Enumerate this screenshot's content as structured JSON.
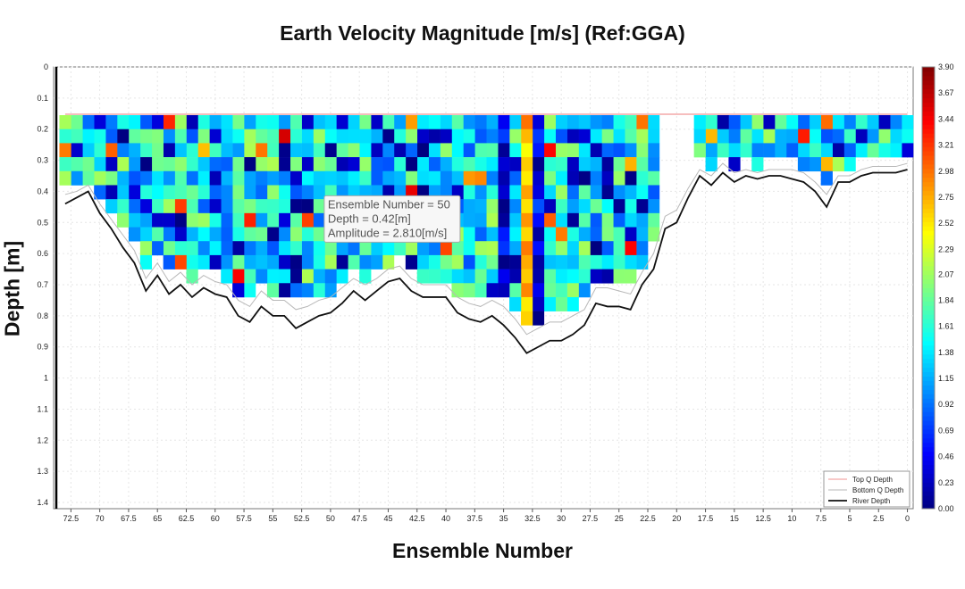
{
  "chart_data": {
    "type": "heatmap",
    "title": "Earth Velocity Magnitude [m/s] (Ref:GGA)",
    "xlabel": "Ensemble Number",
    "ylabel": "Depth [m]",
    "x_reversed": true,
    "xlim": [
      74,
      -0.5
    ],
    "ylim": [
      0,
      1.42
    ],
    "y_reversed": true,
    "grid": true,
    "x_ticks": [
      "72.5",
      "70",
      "67.5",
      "65",
      "62.5",
      "60",
      "57.5",
      "55",
      "52.5",
      "50",
      "47.5",
      "45",
      "42.5",
      "40",
      "37.5",
      "35",
      "32.5",
      "30",
      "27.5",
      "25",
      "22.5",
      "20",
      "17.5",
      "15",
      "12.5",
      "10",
      "7.5",
      "5",
      "2.5",
      "0"
    ],
    "y_ticks": [
      "0",
      "0.1",
      "0.2",
      "0.3",
      "0.4",
      "0.5",
      "0.6",
      "0.7",
      "0.8",
      "0.9",
      "1",
      "1.1",
      "1.2",
      "1.3",
      "1.4"
    ],
    "colorbar": {
      "min": 0,
      "max": 3.9,
      "ticks": [
        "3.90",
        "3.67",
        "3.44",
        "3.21",
        "2.98",
        "2.75",
        "2.52",
        "2.29",
        "2.07",
        "1.84",
        "1.61",
        "1.38",
        "1.15",
        "0.92",
        "0.69",
        "0.46",
        "0.23",
        "0.00"
      ],
      "colormap": "jet"
    },
    "cell_depth_start": 0.155,
    "cell_size": 0.045,
    "ensembles": [
      0,
      1,
      2,
      3,
      4,
      5,
      6,
      7,
      8,
      9,
      10,
      11,
      12,
      13,
      14,
      15,
      16,
      17,
      18,
      19,
      20,
      21,
      22,
      23,
      24,
      25,
      26,
      27,
      28,
      29,
      30,
      31,
      32,
      33,
      34,
      35,
      36,
      37,
      38,
      39,
      40,
      41,
      42,
      43,
      44,
      45,
      46,
      47,
      48,
      49,
      50,
      51,
      52,
      53,
      54,
      55,
      56,
      57,
      58,
      59,
      60,
      61,
      62,
      63,
      64,
      65,
      66,
      67,
      68,
      69,
      70,
      71,
      72,
      73
    ],
    "river_depth": [
      0.33,
      0.34,
      0.34,
      0.34,
      0.35,
      0.37,
      0.37,
      0.45,
      0.4,
      0.37,
      0.36,
      0.35,
      0.35,
      0.36,
      0.35,
      0.37,
      0.34,
      0.38,
      0.35,
      0.42,
      0.5,
      0.52,
      0.65,
      0.7,
      0.78,
      0.77,
      0.77,
      0.76,
      0.83,
      0.86,
      0.88,
      0.88,
      0.9,
      0.92,
      0.87,
      0.83,
      0.8,
      0.82,
      0.81,
      0.79,
      0.74,
      0.74,
      0.74,
      0.72,
      0.68,
      0.69,
      0.72,
      0.75,
      0.72,
      0.76,
      0.79,
      0.8,
      0.82,
      0.84,
      0.8,
      0.8,
      0.77,
      0.82,
      0.8,
      0.74,
      0.73,
      0.71,
      0.74,
      0.7,
      0.73,
      0.67,
      0.72,
      0.63,
      0.58,
      0.52,
      0.47,
      0.4,
      0.42,
      0.44
    ],
    "bottom_q_depth": [
      0.31,
      0.32,
      0.32,
      0.32,
      0.33,
      0.35,
      0.35,
      0.41,
      0.37,
      0.34,
      0.33,
      0.33,
      0.33,
      0.34,
      0.33,
      0.34,
      0.31,
      0.35,
      0.33,
      0.39,
      0.46,
      0.48,
      0.6,
      0.66,
      0.73,
      0.72,
      0.71,
      0.71,
      0.78,
      0.8,
      0.82,
      0.82,
      0.84,
      0.86,
      0.81,
      0.77,
      0.75,
      0.77,
      0.76,
      0.74,
      0.7,
      0.7,
      0.7,
      0.68,
      0.64,
      0.65,
      0.68,
      0.7,
      0.68,
      0.71,
      0.74,
      0.75,
      0.77,
      0.78,
      0.75,
      0.75,
      0.72,
      0.77,
      0.75,
      0.7,
      0.69,
      0.67,
      0.7,
      0.66,
      0.69,
      0.63,
      0.68,
      0.59,
      0.54,
      0.49,
      0.44,
      0.38,
      0.4,
      0.41
    ],
    "top_q_depth": 0.152,
    "tooltip": {
      "ensemble": 50,
      "depth": 0.42,
      "lines": [
        "Ensemble Number = 50",
        "Depth = 0.42[m]",
        "Amplitude = 2.810[m/s]"
      ]
    },
    "legend": {
      "placement": "bottom-right",
      "entries": [
        {
          "name": "Top Q Depth",
          "color": "#f4a9a8"
        },
        {
          "name": "Bottom Q Depth",
          "color": "#c8c8c8"
        },
        {
          "name": "River Depth",
          "color": "#111111"
        }
      ]
    }
  }
}
